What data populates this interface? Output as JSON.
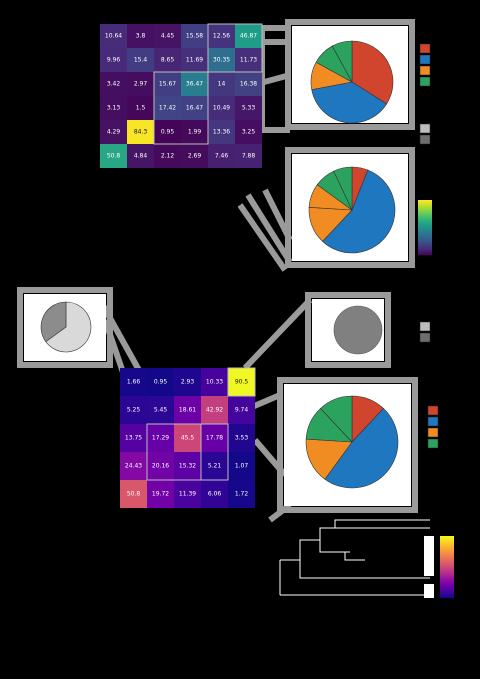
{
  "chart_data": [
    {
      "type": "heatmap",
      "rows": 6,
      "cols": 6,
      "values": [
        [
          10.64,
          3.8,
          4.45,
          15.58,
          12.56,
          46.87
        ],
        [
          9.96,
          15.4,
          8.65,
          11.69,
          30.35,
          11.73
        ],
        [
          3.42,
          2.97,
          15.67,
          36.47,
          14,
          16.38
        ],
        [
          3.13,
          1.5,
          17.42,
          16.47,
          10.49,
          5.33
        ],
        [
          4.29,
          84.3,
          0.95,
          1.99,
          13.36,
          3.25
        ],
        [
          50.8,
          4.84,
          2.12,
          2.69,
          7.46,
          7.88
        ]
      ],
      "colormap": "viridis"
    },
    {
      "type": "heatmap",
      "rows": 5,
      "cols": 5,
      "values": [
        [
          1.66,
          0.95,
          2.93,
          10.33,
          90.5
        ],
        [
          5.25,
          5.45,
          18.61,
          42.92,
          9.74
        ],
        [
          13.75,
          17.29,
          45.5,
          17.78,
          3.53
        ],
        [
          24.43,
          20.16,
          15.32,
          5.21,
          1.07
        ],
        [
          50.8,
          19.72,
          11.39,
          6.06,
          1.72
        ]
      ],
      "colormap": "plasma"
    },
    {
      "type": "pie",
      "values": [
        34,
        38,
        11,
        9,
        8
      ],
      "colors": [
        "#d1452f",
        "#1f77c0",
        "#f08c22",
        "#2ca25f",
        "#2ca25f"
      ]
    },
    {
      "type": "pie",
      "values": [
        6,
        56,
        14,
        9,
        8,
        7
      ],
      "colors": [
        "#d1452f",
        "#1f77c0",
        "#f08c22",
        "#f08c22",
        "#2ca25f",
        "#2ca25f"
      ]
    },
    {
      "type": "pie",
      "values": [
        12,
        48,
        16,
        12,
        12
      ],
      "colors": [
        "#d1452f",
        "#1f77c0",
        "#f08c22",
        "#2ca25f",
        "#2ca25f"
      ]
    },
    {
      "type": "pie",
      "values": [
        65,
        35
      ],
      "colors": [
        "#d9d9d9",
        "#8c8c8c"
      ]
    },
    {
      "type": "pie",
      "values": [
        100
      ],
      "colors": [
        "#808080"
      ]
    }
  ],
  "palette": {
    "background": "#000000",
    "panel_fill": "#ffffff",
    "connector": "#9a9a9a",
    "legend_red": "#d1452f",
    "legend_blue": "#1f77c0",
    "legend_orange": "#f08c22",
    "legend_green": "#2ca25f"
  }
}
